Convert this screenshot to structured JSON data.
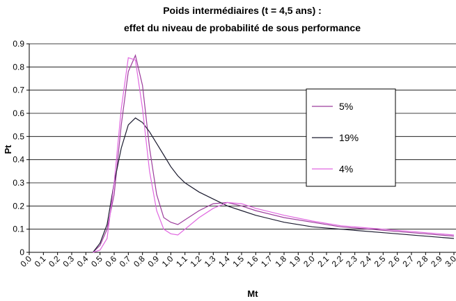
{
  "chart_data": {
    "type": "line",
    "title": "Poids intermédiaires (t = 4,5 ans) :",
    "subtitle": "effet du niveau de probabilité de sous performance",
    "x_label": "Mt",
    "y_label": "Pt",
    "x": [
      0.45,
      0.5,
      0.55,
      0.6,
      0.65,
      0.7,
      0.75,
      0.8,
      0.85,
      0.9,
      0.95,
      1.0,
      1.05,
      1.1,
      1.2,
      1.3,
      1.4,
      1.5,
      1.6,
      1.8,
      2.0,
      2.2,
      2.5,
      2.8,
      3.0
    ],
    "series": [
      {
        "name": "5%",
        "color": "#9c3c9c",
        "values": [
          0,
          0.03,
          0.1,
          0.25,
          0.55,
          0.78,
          0.85,
          0.72,
          0.45,
          0.25,
          0.15,
          0.13,
          0.12,
          0.14,
          0.18,
          0.21,
          0.215,
          0.2,
          0.18,
          0.15,
          0.13,
          0.11,
          0.095,
          0.08,
          0.07
        ]
      },
      {
        "name": "19%",
        "color": "#1a1a2e",
        "values": [
          0,
          0.04,
          0.12,
          0.3,
          0.45,
          0.55,
          0.58,
          0.56,
          0.52,
          0.47,
          0.42,
          0.37,
          0.33,
          0.3,
          0.26,
          0.23,
          0.2,
          0.18,
          0.16,
          0.13,
          0.11,
          0.1,
          0.085,
          0.07,
          0.06
        ]
      },
      {
        "name": "4%",
        "color": "#e066e0",
        "values": [
          0,
          0.01,
          0.06,
          0.3,
          0.62,
          0.84,
          0.83,
          0.62,
          0.35,
          0.18,
          0.1,
          0.08,
          0.075,
          0.1,
          0.15,
          0.19,
          0.215,
          0.21,
          0.19,
          0.16,
          0.135,
          0.115,
          0.1,
          0.085,
          0.075
        ]
      }
    ],
    "xlim": [
      0,
      3
    ],
    "xticks": [
      {
        "value": 0,
        "label": "0.0"
      },
      {
        "value": 0.1,
        "label": "0.1"
      },
      {
        "value": 0.2,
        "label": "0.2"
      },
      {
        "value": 0.3,
        "label": "0.3"
      },
      {
        "value": 0.4,
        "label": "0.4"
      },
      {
        "value": 0.5,
        "label": "0.5"
      },
      {
        "value": 0.6,
        "label": "0.6"
      },
      {
        "value": 0.7,
        "label": "0.7"
      },
      {
        "value": 0.8,
        "label": "0.8"
      },
      {
        "value": 0.9,
        "label": "0.9"
      },
      {
        "value": 1,
        "label": "1.0"
      },
      {
        "value": 1.1,
        "label": "1.1"
      },
      {
        "value": 1.2,
        "label": "1.2"
      },
      {
        "value": 1.3,
        "label": "1.3"
      },
      {
        "value": 1.4,
        "label": "1.4"
      },
      {
        "value": 1.5,
        "label": "1.5"
      },
      {
        "value": 1.6,
        "label": "1.6"
      },
      {
        "value": 1.7,
        "label": "1.7"
      },
      {
        "value": 1.8,
        "label": "1.8"
      },
      {
        "value": 1.9,
        "label": "1.9"
      },
      {
        "value": 2,
        "label": "2.0"
      },
      {
        "value": 2.1,
        "label": "2.1"
      },
      {
        "value": 2.2,
        "label": "2.2"
      },
      {
        "value": 2.3,
        "label": "2.3"
      },
      {
        "value": 2.4,
        "label": "2.4"
      },
      {
        "value": 2.5,
        "label": "2.5"
      },
      {
        "value": 2.6,
        "label": "2.6"
      },
      {
        "value": 2.7,
        "label": "2.7"
      },
      {
        "value": 2.8,
        "label": "2.8"
      },
      {
        "value": 2.9,
        "label": "2.9"
      },
      {
        "value": 3,
        "label": "3.0"
      }
    ],
    "ylim": [
      0,
      0.9
    ],
    "yticks": [
      0,
      0.1,
      0.2,
      0.3,
      0.4,
      0.5,
      0.6,
      0.7,
      0.8,
      0.9
    ],
    "grid": true,
    "legend": "right"
  }
}
